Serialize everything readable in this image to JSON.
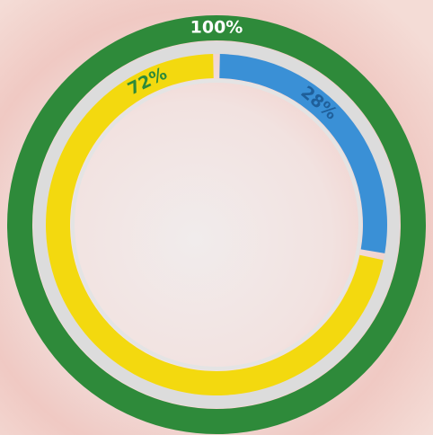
{
  "chart_data": {
    "type": "donut",
    "series": [
      {
        "colors": [
          "#2e8a3a"
        ],
        "values": [
          100
        ],
        "value_labels": [
          "100%"
        ],
        "label_color": "#ffffff"
      },
      {
        "colors": [
          "#3a90d6",
          "#f3d90f"
        ],
        "values": [
          28,
          72
        ],
        "value_labels": [
          "28%",
          "72%"
        ],
        "label_colors": [
          "#1f5f9a",
          "#2e8a3a"
        ]
      }
    ]
  }
}
